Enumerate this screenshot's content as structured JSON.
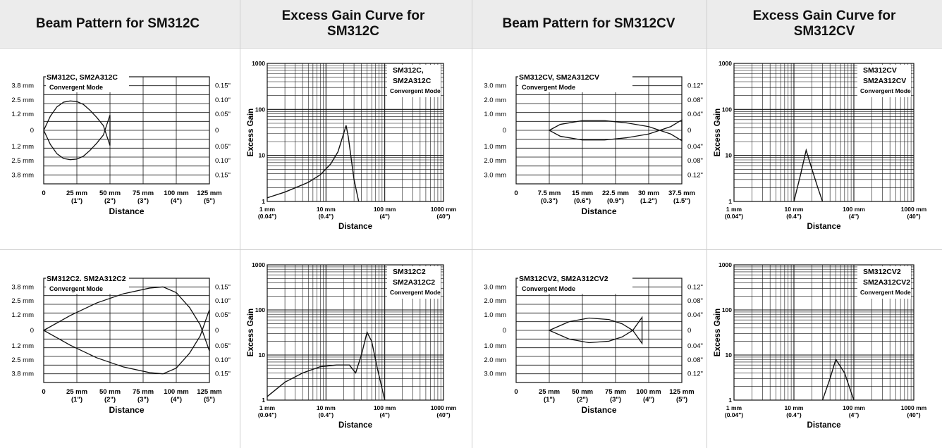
{
  "headers": [
    "Beam Pattern for SM312C",
    "Excess Gain Curve for SM312C",
    "Beam Pattern for SM312CV",
    "Excess Gain Curve for SM312CV"
  ],
  "charts": [
    {
      "kind": "beam",
      "left_labels": [
        "3.8 mm",
        "2.5 mm",
        "1.2 mm",
        "0",
        "1.2 mm",
        "2.5 mm",
        "3.8 mm"
      ],
      "right_labels": [
        "0.15\"",
        "0.10\"",
        "0.05\"",
        "0",
        "0.05\"",
        "0.10\"",
        "0.15\""
      ],
      "x_ticks_top": [
        "0",
        "25 mm",
        "50 mm",
        "75 mm",
        "100 mm",
        "125 mm"
      ],
      "x_ticks_bottom": [
        "",
        "(1\")",
        "(2\")",
        "(3\")",
        "(4\")",
        "(5\")"
      ],
      "xlabel": "Distance",
      "legend_lines": [
        "SM312C, SM2A312C",
        "Convergent Mode"
      ]
    },
    {
      "kind": "gain",
      "y_ticks": [
        "1000",
        "100",
        "10",
        "1"
      ],
      "x_ticks_top": [
        "1 mm",
        "10 mm",
        "100 mm",
        "1000 mm"
      ],
      "x_ticks_bottom": [
        "(0.04\")",
        "(0.4\")",
        "(4\")",
        "(40\")"
      ],
      "xlabel": "Distance",
      "ylabel": "Excess Gain",
      "legend_lines": [
        "SM312C,",
        "SM2A312C",
        "Convergent Mode"
      ]
    },
    {
      "kind": "beam",
      "left_labels": [
        "3.0 mm",
        "2.0 mm",
        "1.0 mm",
        "0",
        "1.0 mm",
        "2.0 mm",
        "3.0 mm"
      ],
      "right_labels": [
        "0.12\"",
        "0.08\"",
        "0.04\"",
        "0",
        "0.04\"",
        "0.08\"",
        "0.12\""
      ],
      "x_ticks_top": [
        "0",
        "7.5 mm",
        "15 mm",
        "22.5 mm",
        "30 mm",
        "37.5 mm"
      ],
      "x_ticks_bottom": [
        "",
        "(0.3\")",
        "(0.6\")",
        "(0.9\")",
        "(1.2\")",
        "(1.5\")"
      ],
      "xlabel": "Distance",
      "legend_lines": [
        "SM312CV, SM2A312CV",
        "Convergent Mode"
      ]
    },
    {
      "kind": "gain",
      "y_ticks": [
        "1000",
        "100",
        "10",
        "1"
      ],
      "x_ticks_top": [
        "1 mm",
        "10 mm",
        "100 mm",
        "1000 mm"
      ],
      "x_ticks_bottom": [
        "(0.04\")",
        "(0.4\")",
        "(4\")",
        "(40\")"
      ],
      "xlabel": "Distance",
      "ylabel": "Excess Gain",
      "legend_lines": [
        "SM312CV",
        "SM2A312CV",
        "Convergent Mode"
      ]
    },
    {
      "kind": "beam",
      "left_labels": [
        "3.8 mm",
        "2.5 mm",
        "1.2 mm",
        "0",
        "1.2 mm",
        "2.5 mm",
        "3.8 mm"
      ],
      "right_labels": [
        "0.15\"",
        "0.10\"",
        "0.05\"",
        "0",
        "0.05\"",
        "0.10\"",
        "0.15\""
      ],
      "x_ticks_top": [
        "0",
        "25 mm",
        "50 mm",
        "75 mm",
        "100 mm",
        "125 mm"
      ],
      "x_ticks_bottom": [
        "",
        "(1\")",
        "(2\")",
        "(3\")",
        "(4\")",
        "(5\")"
      ],
      "xlabel": "Distance",
      "legend_lines": [
        "SM312C2. SM2A312C2",
        "Convergent Mode"
      ]
    },
    {
      "kind": "gain",
      "y_ticks": [
        "1000",
        "100",
        "10",
        "1"
      ],
      "x_ticks_top": [
        "1 mm",
        "10 mm",
        "100 mm",
        "1000 mm"
      ],
      "x_ticks_bottom": [
        "(0.04\")",
        "(0.4\")",
        "(4\")",
        "(40\")"
      ],
      "xlabel": "Distance",
      "ylabel": "Excess Gain",
      "legend_lines": [
        "SM312C2",
        "SM2A312C2",
        "Convergent Mode"
      ]
    },
    {
      "kind": "beam",
      "left_labels": [
        "3.0 mm",
        "2.0 mm",
        "1.0 mm",
        "0",
        "1.0 mm",
        "2.0 mm",
        "3.0 mm"
      ],
      "right_labels": [
        "0.12\"",
        "0.08\"",
        "0.04\"",
        "0",
        "0.04\"",
        "0.08\"",
        "0.12\""
      ],
      "x_ticks_top": [
        "0",
        "25 mm",
        "50 mm",
        "75 mm",
        "100 mm",
        "125 mm"
      ],
      "x_ticks_bottom": [
        "",
        "(1\")",
        "(2\")",
        "(3\")",
        "(4\")",
        "(5\")"
      ],
      "xlabel": "Distance",
      "legend_lines": [
        "SM312CV2, SM2A312CV2",
        "Convergent Mode"
      ]
    },
    {
      "kind": "gain",
      "y_ticks": [
        "1000",
        "100",
        "10",
        "1"
      ],
      "x_ticks_top": [
        "1 mm",
        "10 mm",
        "100 mm",
        "1000 mm"
      ],
      "x_ticks_bottom": [
        "(0.04\")",
        "(0.4\")",
        "(4\")",
        "(40\")"
      ],
      "xlabel": "Distance",
      "ylabel": "Excess Gain",
      "legend_lines": [
        "SM312CV2",
        "SM2A312CV2",
        "Convergent Mode"
      ]
    }
  ],
  "chart_data": [
    {
      "type": "line",
      "title": "Beam Pattern for SM312C",
      "xlabel": "Distance",
      "x_unit": "mm",
      "y_unit": "mm",
      "xlim": [
        0,
        125
      ],
      "ylim": [
        -3.8,
        3.8
      ],
      "series": [
        {
          "name": "SM312C, SM2A312C",
          "x": [
            0,
            5,
            10,
            15,
            20,
            25,
            30,
            35,
            40,
            45,
            50
          ],
          "y_upper": [
            0,
            1.2,
            2.0,
            2.4,
            2.5,
            2.45,
            2.2,
            1.7,
            1.1,
            0.4,
            -1.3
          ],
          "y_lower": [
            0,
            -1.2,
            -2.0,
            -2.4,
            -2.5,
            -2.45,
            -2.2,
            -1.7,
            -1.1,
            -0.4,
            1.3
          ]
        }
      ]
    },
    {
      "type": "line",
      "title": "Excess Gain Curve for SM312C",
      "xlabel": "Distance",
      "ylabel": "Excess Gain",
      "x_unit": "mm",
      "log_x": true,
      "log_y": true,
      "xlim": [
        1,
        1000
      ],
      "ylim": [
        1,
        1000
      ],
      "series": [
        {
          "name": "SM312C, SM2A312C",
          "x": [
            1,
            2,
            5,
            8,
            12,
            16,
            20,
            22,
            24,
            30,
            36
          ],
          "y": [
            1.2,
            1.6,
            2.6,
            3.8,
            6.5,
            12,
            30,
            45,
            25,
            3,
            1
          ]
        }
      ]
    },
    {
      "type": "line",
      "title": "Beam Pattern for SM312CV",
      "xlabel": "Distance",
      "x_unit": "mm",
      "y_unit": "mm",
      "xlim": [
        0,
        37.5
      ],
      "ylim": [
        -3.0,
        3.0
      ],
      "series": [
        {
          "name": "SM312CV, SM2A312CV",
          "x": [
            7.5,
            10,
            15,
            20,
            25,
            30,
            35,
            37.5
          ],
          "y_upper": [
            0,
            0.4,
            0.65,
            0.65,
            0.5,
            0.25,
            -0.25,
            -0.7
          ],
          "y_lower": [
            0,
            -0.4,
            -0.65,
            -0.65,
            -0.5,
            -0.25,
            0.25,
            0.7
          ]
        }
      ]
    },
    {
      "type": "line",
      "title": "Excess Gain Curve for SM312CV",
      "xlabel": "Distance",
      "ylabel": "Excess Gain",
      "x_unit": "mm",
      "log_x": true,
      "log_y": true,
      "xlim": [
        1,
        1000
      ],
      "ylim": [
        1,
        1000
      ],
      "series": [
        {
          "name": "SM312CV, SM2A312CV",
          "x": [
            10,
            13,
            16,
            20,
            25,
            30
          ],
          "y": [
            1,
            4,
            13,
            5,
            2,
            1
          ]
        }
      ]
    },
    {
      "type": "line",
      "title": "Beam Pattern for SM312C",
      "xlabel": "Distance",
      "x_unit": "mm",
      "y_unit": "mm",
      "xlim": [
        0,
        125
      ],
      "ylim": [
        -3.8,
        3.8
      ],
      "series": [
        {
          "name": "SM312C2. SM2A312C2",
          "x": [
            0,
            20,
            40,
            60,
            80,
            90,
            100,
            110,
            118,
            125
          ],
          "y_upper": [
            0,
            1.3,
            2.4,
            3.2,
            3.7,
            3.8,
            3.3,
            2.0,
            0.5,
            -1.8
          ],
          "y_lower": [
            0,
            -1.3,
            -2.4,
            -3.2,
            -3.7,
            -3.8,
            -3.3,
            -2.0,
            -0.5,
            1.8
          ]
        }
      ]
    },
    {
      "type": "line",
      "title": "Excess Gain Curve for SM312C",
      "xlabel": "Distance",
      "ylabel": "Excess Gain",
      "x_unit": "mm",
      "log_x": true,
      "log_y": true,
      "xlim": [
        1,
        1000
      ],
      "ylim": [
        1,
        1000
      ],
      "series": [
        {
          "name": "SM312C2, SM2A312C2",
          "x": [
            1,
            2,
            4,
            8,
            15,
            25,
            32,
            40,
            50,
            60,
            75,
            100
          ],
          "y": [
            1.2,
            2.5,
            4,
            5.5,
            6,
            6,
            4,
            10,
            32,
            20,
            5,
            1
          ]
        }
      ]
    },
    {
      "type": "line",
      "title": "Beam Pattern for SM312CV",
      "xlabel": "Distance",
      "x_unit": "mm",
      "y_unit": "mm",
      "xlim": [
        0,
        125
      ],
      "ylim": [
        -3.0,
        3.0
      ],
      "series": [
        {
          "name": "SM312CV2, SM2A312CV2",
          "x": [
            25,
            40,
            55,
            70,
            80,
            88,
            95
          ],
          "y_upper": [
            0,
            0.6,
            0.85,
            0.75,
            0.45,
            0,
            -0.9
          ],
          "y_lower": [
            0,
            -0.6,
            -0.85,
            -0.75,
            -0.45,
            0,
            0.9
          ]
        }
      ]
    },
    {
      "type": "line",
      "title": "Excess Gain Curve for SM312CV",
      "xlabel": "Distance",
      "ylabel": "Excess Gain",
      "x_unit": "mm",
      "log_x": true,
      "log_y": true,
      "xlim": [
        1,
        1000
      ],
      "ylim": [
        1,
        1000
      ],
      "series": [
        {
          "name": "SM312CV2, SM2A312CV2",
          "x": [
            30,
            40,
            50,
            70,
            90,
            100
          ],
          "y": [
            1,
            3,
            8,
            4,
            1.5,
            1
          ]
        }
      ]
    }
  ]
}
